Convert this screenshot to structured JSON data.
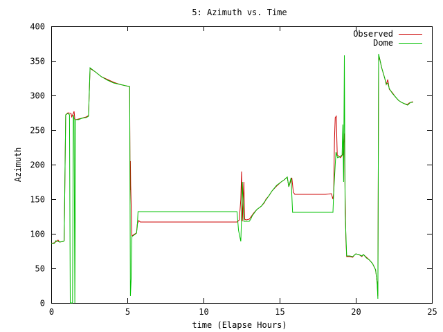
{
  "chart_data": {
    "type": "line",
    "title": "5: Azimuth vs. Time",
    "xlabel": "time (Elapse Hours)",
    "ylabel": "Azimuth",
    "xlim": [
      0,
      25
    ],
    "ylim": [
      0,
      400
    ],
    "xticks": [
      0,
      5,
      10,
      15,
      20,
      25
    ],
    "yticks": [
      0,
      50,
      100,
      150,
      200,
      250,
      300,
      350,
      400
    ],
    "grid": false,
    "legend_position": "top-right",
    "series": [
      {
        "name": "Observed",
        "color": "#cc0000",
        "points": [
          [
            0,
            86
          ],
          [
            0.2,
            87
          ],
          [
            0.35,
            89
          ],
          [
            0.45,
            91
          ],
          [
            0.55,
            88
          ],
          [
            0.8,
            89
          ],
          [
            0.85,
            90
          ],
          [
            0.95,
            272
          ],
          [
            1.1,
            275
          ],
          [
            1.3,
            274
          ],
          [
            1.35,
            269
          ],
          [
            1.45,
            274
          ],
          [
            1.5,
            277
          ],
          [
            1.55,
            266
          ],
          [
            1.6,
            265
          ],
          [
            1.8,
            266
          ],
          [
            2.0,
            267
          ],
          [
            2.3,
            269
          ],
          [
            2.45,
            271
          ],
          [
            2.55,
            339
          ],
          [
            2.9,
            334
          ],
          [
            3.3,
            327
          ],
          [
            3.7,
            323
          ],
          [
            4.1,
            319
          ],
          [
            4.5,
            316
          ],
          [
            4.9,
            314
          ],
          [
            5.1,
            313
          ],
          [
            5.15,
            313
          ],
          [
            5.18,
            163
          ],
          [
            5.2,
            205
          ],
          [
            5.22,
            170
          ],
          [
            5.3,
            97
          ],
          [
            5.5,
            100
          ],
          [
            5.6,
            101
          ],
          [
            5.65,
            114
          ],
          [
            5.75,
            119
          ],
          [
            5.85,
            117
          ],
          [
            8,
            117
          ],
          [
            10,
            117
          ],
          [
            12,
            117
          ],
          [
            12.2,
            117
          ],
          [
            12.35,
            120
          ],
          [
            12.45,
            150
          ],
          [
            12.5,
            190
          ],
          [
            12.55,
            118
          ],
          [
            12.65,
            175
          ],
          [
            12.7,
            121
          ],
          [
            12.8,
            120
          ],
          [
            13.0,
            121
          ],
          [
            13.1,
            124
          ],
          [
            13.3,
            130
          ],
          [
            13.5,
            135
          ],
          [
            13.8,
            140
          ],
          [
            14.0,
            145
          ],
          [
            14.1,
            150
          ],
          [
            14.3,
            155
          ],
          [
            14.5,
            162
          ],
          [
            14.8,
            169
          ],
          [
            15.1,
            175
          ],
          [
            15.3,
            178
          ],
          [
            15.5,
            182
          ],
          [
            15.6,
            168
          ],
          [
            15.8,
            181
          ],
          [
            15.9,
            160
          ],
          [
            16.0,
            157
          ],
          [
            16.5,
            157
          ],
          [
            17,
            157
          ],
          [
            17.5,
            157
          ],
          [
            18,
            157
          ],
          [
            18.4,
            158
          ],
          [
            18.5,
            150
          ],
          [
            18.55,
            160
          ],
          [
            18.6,
            236
          ],
          [
            18.65,
            268
          ],
          [
            18.72,
            270
          ],
          [
            18.78,
            214
          ],
          [
            19.0,
            210
          ],
          [
            19.15,
            215
          ],
          [
            19.25,
            245
          ],
          [
            19.3,
            155
          ],
          [
            19.35,
            92
          ],
          [
            19.4,
            67
          ],
          [
            19.6,
            67
          ],
          [
            19.8,
            66
          ],
          [
            19.9,
            69
          ],
          [
            20.0,
            71
          ],
          [
            20.2,
            70
          ],
          [
            20.4,
            67
          ],
          [
            20.5,
            70
          ],
          [
            20.7,
            66
          ],
          [
            20.9,
            62
          ],
          [
            21.1,
            57
          ],
          [
            21.3,
            48
          ],
          [
            21.4,
            30
          ],
          [
            21.45,
            10
          ],
          [
            21.5,
            350
          ],
          [
            21.55,
            355
          ],
          [
            21.7,
            340
          ],
          [
            21.9,
            325
          ],
          [
            22.0,
            316
          ],
          [
            22.1,
            323
          ],
          [
            22.2,
            309
          ],
          [
            22.4,
            304
          ],
          [
            22.6,
            298
          ],
          [
            22.8,
            293
          ],
          [
            23.0,
            290
          ],
          [
            23.2,
            288
          ],
          [
            23.4,
            287
          ],
          [
            23.5,
            289
          ],
          [
            23.6,
            290
          ],
          [
            23.75,
            291
          ]
        ]
      },
      {
        "name": "Dome",
        "color": "#00c000",
        "points": [
          [
            0,
            86
          ],
          [
            0.2,
            86
          ],
          [
            0.3,
            90
          ],
          [
            0.45,
            89
          ],
          [
            0.55,
            88
          ],
          [
            0.8,
            89
          ],
          [
            0.85,
            90
          ],
          [
            0.95,
            272
          ],
          [
            1.1,
            274
          ],
          [
            1.2,
            272
          ],
          [
            1.25,
            0
          ],
          [
            1.4,
            0
          ],
          [
            1.45,
            272
          ],
          [
            1.5,
            266
          ],
          [
            1.55,
            0
          ],
          [
            1.6,
            265
          ],
          [
            1.8,
            265
          ],
          [
            2.0,
            267
          ],
          [
            2.3,
            268
          ],
          [
            2.45,
            270
          ],
          [
            2.55,
            340
          ],
          [
            2.9,
            334
          ],
          [
            3.3,
            327
          ],
          [
            3.7,
            322
          ],
          [
            4.1,
            318
          ],
          [
            4.5,
            316
          ],
          [
            4.9,
            314
          ],
          [
            5.1,
            313
          ],
          [
            5.15,
            313
          ],
          [
            5.2,
            10
          ],
          [
            5.25,
            35
          ],
          [
            5.3,
            96
          ],
          [
            5.5,
            99
          ],
          [
            5.6,
            101
          ],
          [
            5.65,
            110
          ],
          [
            5.7,
            132
          ],
          [
            8,
            132
          ],
          [
            10,
            132
          ],
          [
            12,
            132
          ],
          [
            12.2,
            132
          ],
          [
            12.3,
            105
          ],
          [
            12.45,
            89
          ],
          [
            12.5,
            125
          ],
          [
            12.55,
            175
          ],
          [
            12.65,
            118
          ],
          [
            13.0,
            118
          ],
          [
            13.1,
            121
          ],
          [
            13.2,
            126
          ],
          [
            13.5,
            135
          ],
          [
            13.8,
            140
          ],
          [
            14.0,
            146
          ],
          [
            14.2,
            152
          ],
          [
            14.5,
            162
          ],
          [
            14.8,
            170
          ],
          [
            15.1,
            175
          ],
          [
            15.3,
            178
          ],
          [
            15.5,
            182
          ],
          [
            15.6,
            168
          ],
          [
            15.75,
            181
          ],
          [
            15.85,
            131
          ],
          [
            16.5,
            131
          ],
          [
            17,
            131
          ],
          [
            17.5,
            131
          ],
          [
            18,
            131
          ],
          [
            18.5,
            131
          ],
          [
            18.55,
            160
          ],
          [
            18.65,
            200
          ],
          [
            18.7,
            218
          ],
          [
            18.8,
            210
          ],
          [
            19.0,
            212
          ],
          [
            19.1,
            214
          ],
          [
            19.15,
            258
          ],
          [
            19.2,
            175
          ],
          [
            19.25,
            358
          ],
          [
            19.3,
            130
          ],
          [
            19.35,
            100
          ],
          [
            19.4,
            68
          ],
          [
            19.6,
            68
          ],
          [
            19.8,
            67
          ],
          [
            19.9,
            69
          ],
          [
            20.0,
            71
          ],
          [
            20.2,
            70
          ],
          [
            20.4,
            68
          ],
          [
            20.5,
            70
          ],
          [
            20.7,
            65
          ],
          [
            20.9,
            62
          ],
          [
            21.1,
            57
          ],
          [
            21.3,
            48
          ],
          [
            21.4,
            30
          ],
          [
            21.45,
            6
          ],
          [
            21.5,
            360
          ],
          [
            21.55,
            355
          ],
          [
            21.7,
            340
          ],
          [
            21.9,
            325
          ],
          [
            22.0,
            316
          ],
          [
            22.1,
            318
          ],
          [
            22.2,
            310
          ],
          [
            22.4,
            303
          ],
          [
            22.6,
            298
          ],
          [
            22.8,
            293
          ],
          [
            23.0,
            290
          ],
          [
            23.2,
            288
          ],
          [
            23.4,
            286
          ],
          [
            23.5,
            288
          ],
          [
            23.6,
            290
          ],
          [
            23.75,
            290
          ]
        ]
      }
    ]
  }
}
